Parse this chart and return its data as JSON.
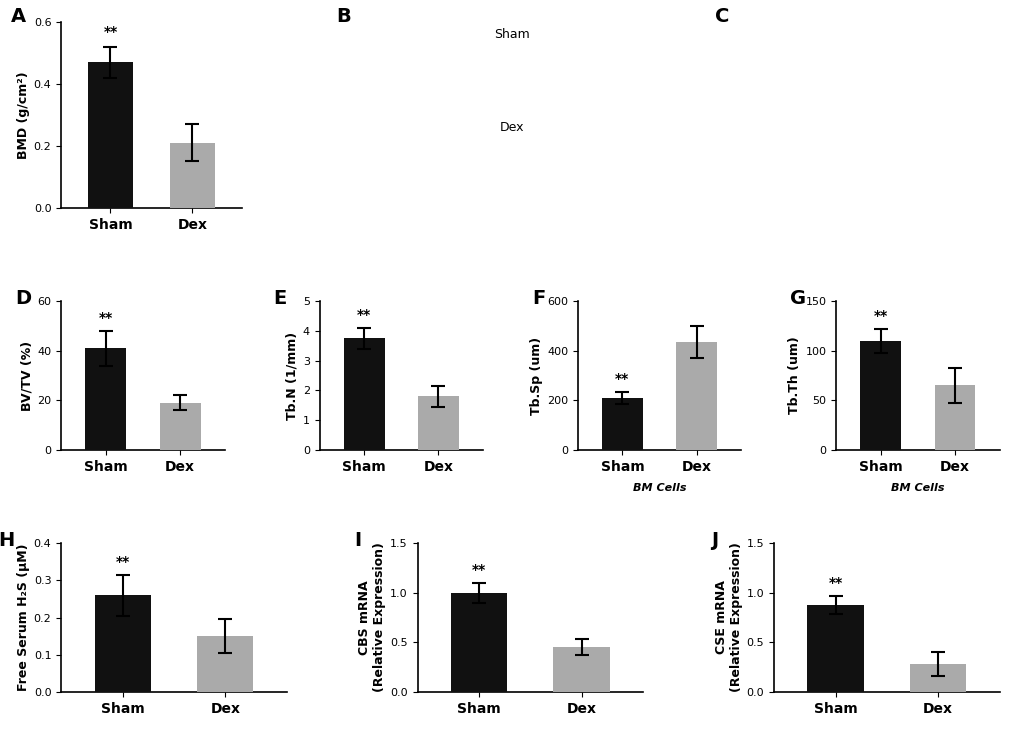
{
  "background_color": "#ffffff",
  "bar_color_black": "#111111",
  "bar_color_gray": "#aaaaaa",
  "panels": {
    "A": {
      "label": "A",
      "ylabel": "BMD (g/cm²)",
      "ylim": [
        0,
        0.6
      ],
      "yticks": [
        0.0,
        0.2,
        0.4,
        0.6
      ],
      "categories": [
        "Sham",
        "Dex"
      ],
      "values": [
        0.47,
        0.21
      ],
      "errors": [
        0.05,
        0.06
      ],
      "sig_idx": 0,
      "sig_label": "**"
    },
    "D": {
      "label": "D",
      "ylabel": "BV/TV (%)",
      "ylim": [
        0,
        60
      ],
      "yticks": [
        0,
        20,
        40,
        60
      ],
      "categories": [
        "Sham",
        "Dex"
      ],
      "values": [
        41,
        19
      ],
      "errors": [
        7,
        3
      ],
      "sig_idx": 0,
      "sig_label": "**"
    },
    "E": {
      "label": "E",
      "ylabel": "Tb.N (1/mm)",
      "ylim": [
        0,
        5
      ],
      "yticks": [
        0,
        1,
        2,
        3,
        4,
        5
      ],
      "categories": [
        "Sham",
        "Dex"
      ],
      "values": [
        3.75,
        1.8
      ],
      "errors": [
        0.35,
        0.35
      ],
      "sig_idx": 0,
      "sig_label": "**"
    },
    "F": {
      "label": "F",
      "ylabel": "Tb.Sp (um)",
      "ylim": [
        0,
        600
      ],
      "yticks": [
        0,
        200,
        400,
        600
      ],
      "categories": [
        "Sham",
        "Dex"
      ],
      "values": [
        210,
        435
      ],
      "errors": [
        25,
        65
      ],
      "sig_idx": 0,
      "sig_label": "**",
      "xlabel_extra": "BM Cells"
    },
    "G": {
      "label": "G",
      "ylabel": "Tb.Th (um)",
      "ylim": [
        0,
        150
      ],
      "yticks": [
        0,
        50,
        100,
        150
      ],
      "categories": [
        "Sham",
        "Dex"
      ],
      "values": [
        110,
        65
      ],
      "errors": [
        12,
        18
      ],
      "sig_idx": 0,
      "sig_label": "**",
      "xlabel_extra": "BM Cells"
    },
    "H": {
      "label": "H",
      "ylabel": "Free Serum H₂S (μM)",
      "ylim": [
        0,
        0.4
      ],
      "yticks": [
        0.0,
        0.1,
        0.2,
        0.3,
        0.4
      ],
      "categories": [
        "Sham",
        "Dex"
      ],
      "values": [
        0.26,
        0.15
      ],
      "errors": [
        0.055,
        0.045
      ],
      "sig_idx": 0,
      "sig_label": "**"
    },
    "I": {
      "label": "I",
      "ylabel": "CBS mRNA\n(Relative Expression)",
      "ylim": [
        0,
        1.5
      ],
      "yticks": [
        0.0,
        0.5,
        1.0,
        1.5
      ],
      "categories": [
        "Sham",
        "Dex"
      ],
      "values": [
        1.0,
        0.45
      ],
      "errors": [
        0.1,
        0.08
      ],
      "sig_idx": 0,
      "sig_label": "**"
    },
    "J": {
      "label": "J",
      "ylabel": "CSE mRNA\n(Relative Expression)",
      "ylim": [
        0,
        1.5
      ],
      "yticks": [
        0.0,
        0.5,
        1.0,
        1.5
      ],
      "categories": [
        "Sham",
        "Dex"
      ],
      "values": [
        0.88,
        0.28
      ],
      "errors": [
        0.09,
        0.12
      ],
      "sig_idx": 0,
      "sig_label": "**"
    }
  },
  "B_label": "B",
  "C_label": "C",
  "B_bg": "#e8d0d8",
  "C_bg": "#101010",
  "panel_label_fontsize": 14,
  "tick_fontsize": 8,
  "xlabel_fontsize": 10,
  "ylabel_fontsize": 9,
  "sig_fontsize": 10
}
